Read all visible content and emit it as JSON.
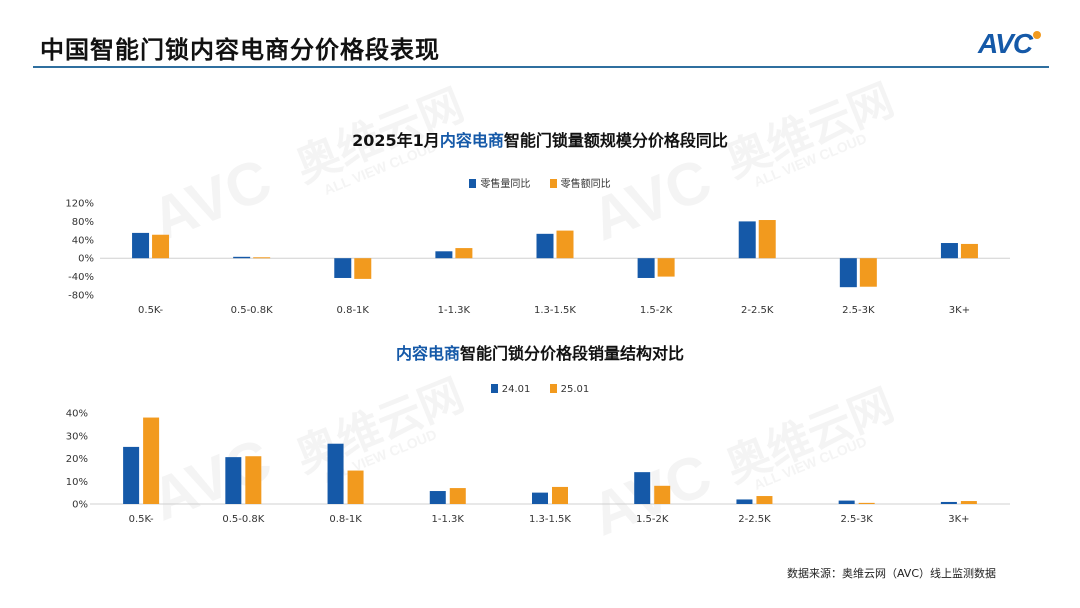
{
  "page": {
    "title": "中国智能门锁内容电商分价格段表现",
    "logo_text": "AVC",
    "source": "数据来源：奥维云网（AVC）线上监测数据"
  },
  "watermark": {
    "brand": "奥维云网",
    "sub": "ALL VIEW CLOUD",
    "logo": "AVC"
  },
  "colors": {
    "blue": "#1559a8",
    "orange": "#f29a1e",
    "rule": "#2f6f9f"
  },
  "chart_data": [
    {
      "type": "bar",
      "title_prefix": "2025年1月",
      "title_highlight": "内容电商",
      "title_suffix": "智能门锁量额规模分价格段同比",
      "categories": [
        "0.5K-",
        "0.5-0.8K",
        "0.8-1K",
        "1-1.3K",
        "1.3-1.5K",
        "1.5-2K",
        "2-2.5K",
        "2.5-3K",
        "3K+"
      ],
      "series": [
        {
          "name": "零售量同比",
          "values": [
            55,
            3,
            -43,
            15,
            53,
            -43,
            80,
            -63,
            33
          ]
        },
        {
          "name": "零售额同比",
          "values": [
            51,
            2,
            -45,
            22,
            60,
            -40,
            83,
            -62,
            31
          ]
        }
      ],
      "yticks": [
        "120%",
        "80%",
        "40%",
        "0%",
        "-40%",
        "-80%"
      ],
      "ylim": [
        -80,
        120
      ],
      "legend": "top-center",
      "grid": false
    },
    {
      "type": "bar",
      "title_prefix": "",
      "title_highlight": "内容电商",
      "title_suffix": "智能门锁分价格段销量结构对比",
      "categories": [
        "0.5K-",
        "0.5-0.8K",
        "0.8-1K",
        "1-1.3K",
        "1.3-1.5K",
        "1.5-2K",
        "2-2.5K",
        "2.5-3K",
        "3K+"
      ],
      "series": [
        {
          "name": "24.01",
          "values": [
            25.1,
            20.6,
            26.5,
            5.7,
            5.0,
            14.0,
            2.0,
            1.5,
            0.9
          ]
        },
        {
          "name": "25.01",
          "values": [
            38.0,
            21.0,
            14.7,
            7.0,
            7.5,
            8.0,
            3.5,
            0.5,
            1.3
          ]
        }
      ],
      "yticks": [
        "40%",
        "30%",
        "20%",
        "10%",
        "0%"
      ],
      "ylim": [
        0,
        40
      ],
      "legend": "top-center",
      "grid": false
    }
  ]
}
